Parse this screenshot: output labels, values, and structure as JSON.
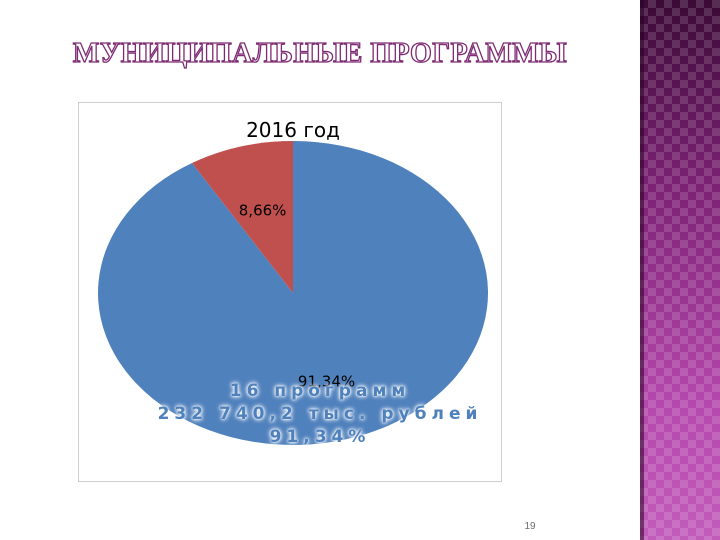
{
  "slide": {
    "title": "МУНИЦИПАЛЬНЫЕ ПРОГРАММЫ",
    "page_number": "19",
    "overlay_lines": [
      "16 программ",
      "232 740,2 тыс. рублей",
      "91,34%"
    ]
  },
  "chart_data": {
    "type": "pie",
    "title": "2016 год",
    "slices": [
      {
        "value": 91.34,
        "label": "91,34%",
        "color": "#4f81bd"
      },
      {
        "value": 8.66,
        "label": "8,66%",
        "color": "#c0504d"
      }
    ],
    "start": "top",
    "direction": "clockwise",
    "legend": "none"
  }
}
